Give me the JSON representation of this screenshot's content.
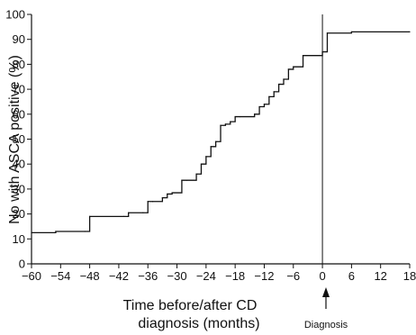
{
  "chart_data": {
    "type": "line",
    "ylabel": "No with ASCA positive (%)",
    "xlabel_lines": [
      "Time before/after CD",
      "diagnosis (months)"
    ],
    "xlim": [
      -60,
      18
    ],
    "ylim": [
      0,
      100
    ],
    "x_ticks": [
      -60,
      -54,
      -48,
      -42,
      -36,
      -30,
      -24,
      -18,
      -12,
      -6,
      0,
      6,
      12,
      18
    ],
    "x_tick_labels": [
      "−60",
      "−54",
      "−48",
      "−42",
      "−36",
      "−30",
      "−24",
      "−18",
      "−12",
      "−6",
      "0",
      "6",
      "12",
      "18"
    ],
    "y_ticks": [
      0,
      10,
      20,
      30,
      40,
      50,
      60,
      70,
      80,
      90,
      100
    ],
    "y_tick_labels": [
      "0",
      "10",
      "20",
      "30",
      "40",
      "50",
      "60",
      "70",
      "80",
      "90",
      "100"
    ],
    "grid": false,
    "step": "post",
    "series": [
      {
        "x": [
          -60,
          -55,
          -49,
          -48,
          -41,
          -40,
          -37,
          -36,
          -35,
          -33,
          -32,
          -31,
          -29,
          -28,
          -26,
          -25,
          -24,
          -23,
          -22,
          -21,
          -20,
          -19,
          -18,
          -17,
          -14,
          -13,
          -12,
          -11,
          -10,
          -9,
          -8,
          -7,
          -6,
          -4,
          0,
          1,
          6,
          18
        ],
        "y": [
          12.5,
          13,
          13,
          19,
          19,
          20.5,
          20.5,
          25,
          25,
          26.5,
          28,
          28.5,
          33.5,
          33.5,
          36,
          40,
          43,
          47,
          49,
          55.5,
          56,
          57,
          59,
          59,
          60,
          63,
          64,
          67,
          69,
          72,
          74,
          78,
          79,
          83.5,
          85,
          92.5,
          93,
          93
        ]
      }
    ],
    "annotations": [
      {
        "text": "Diagnosis",
        "x": 0
      }
    ]
  }
}
